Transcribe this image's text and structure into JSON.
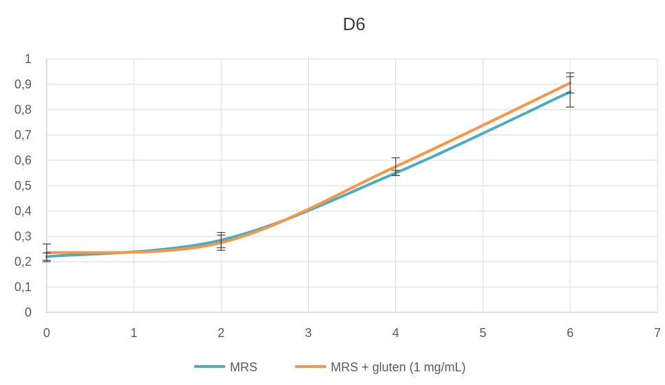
{
  "chart_data": {
    "type": "line",
    "title": "D6",
    "xlabel": "",
    "ylabel": "",
    "xlim": [
      0,
      7
    ],
    "ylim": [
      0,
      1
    ],
    "x_ticks": [
      "0",
      "1",
      "2",
      "3",
      "4",
      "5",
      "6",
      "7"
    ],
    "y_ticks": [
      "0",
      "0,1",
      "0,2",
      "0,3",
      "0,4",
      "0,5",
      "0,6",
      "0,7",
      "0,8",
      "0,9",
      "1"
    ],
    "grid": true,
    "smooth": true,
    "legend_position": "bottom",
    "series": [
      {
        "name": "MRS",
        "color": "#4BACC6",
        "x": [
          0,
          2,
          4,
          6
        ],
        "y": [
          0.22,
          0.285,
          0.55,
          0.87
        ],
        "error": [
          0.015,
          0.03,
          0.01,
          0.06
        ]
      },
      {
        "name": "MRS + gluten (1 mg/mL)",
        "color": "#F79646",
        "x": [
          0,
          2,
          4,
          6
        ],
        "y": [
          0.235,
          0.275,
          0.575,
          0.905
        ],
        "error": [
          0.035,
          0.03,
          0.035,
          0.04
        ]
      }
    ]
  }
}
